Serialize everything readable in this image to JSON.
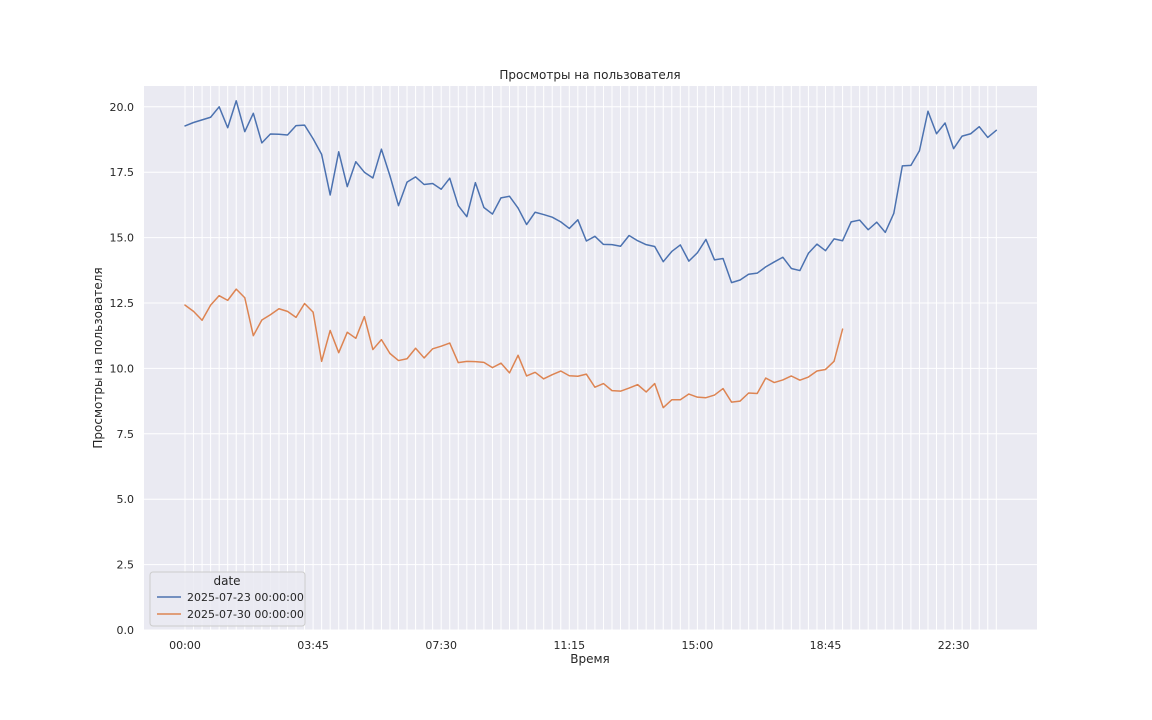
{
  "chart_data": {
    "type": "line",
    "title": "Просмотры на пользователя",
    "xlabel": "Время",
    "ylabel": "Просмотры на пользователя",
    "x_interval_minutes": 15,
    "x_start": "00:00",
    "x_tick_labels": [
      "00:00",
      "03:45",
      "07:30",
      "11:15",
      "15:00",
      "18:45",
      "22:30"
    ],
    "ylim": [
      0,
      20.8
    ],
    "y_ticks": [
      0.0,
      2.5,
      5.0,
      7.5,
      10.0,
      12.5,
      15.0,
      17.5,
      20.0
    ],
    "grid": true,
    "legend_title": "date",
    "legend_position": "lower-left",
    "series": [
      {
        "name": "2025-07-23 00:00:00",
        "color": "#4c72b0",
        "values": [
          19.27,
          19.4,
          19.5,
          19.6,
          20.0,
          19.2,
          20.23,
          19.05,
          19.75,
          18.62,
          18.96,
          18.95,
          18.92,
          19.28,
          19.3,
          18.78,
          18.18,
          16.63,
          18.28,
          16.95,
          17.9,
          17.5,
          17.28,
          18.38,
          17.36,
          16.22,
          17.12,
          17.32,
          17.03,
          17.07,
          16.85,
          17.27,
          16.22,
          15.8,
          17.1,
          16.15,
          15.9,
          16.52,
          16.58,
          16.13,
          15.5,
          15.97,
          15.88,
          15.78,
          15.6,
          15.35,
          15.68,
          14.87,
          15.05,
          14.74,
          14.73,
          14.67,
          15.08,
          14.88,
          14.73,
          14.66,
          14.08,
          14.47,
          14.72,
          14.1,
          14.42,
          14.93,
          14.15,
          14.2,
          13.28,
          13.38,
          13.6,
          13.64,
          13.88,
          14.07,
          14.25,
          13.82,
          13.74,
          14.4,
          14.75,
          14.5,
          14.95,
          14.88,
          15.6,
          15.67,
          15.3,
          15.59,
          15.2,
          15.93,
          17.74,
          17.76,
          18.32,
          19.83,
          18.97,
          19.38,
          18.4,
          18.88,
          18.97,
          19.24,
          18.83,
          19.1
        ]
      },
      {
        "name": "2025-07-30 00:00:00",
        "color": "#dd8452",
        "values": [
          12.42,
          12.18,
          11.84,
          12.42,
          12.78,
          12.6,
          13.03,
          12.7,
          11.25,
          11.85,
          12.05,
          12.28,
          12.18,
          11.95,
          12.48,
          12.15,
          10.27,
          11.45,
          10.6,
          11.38,
          11.15,
          11.98,
          10.72,
          11.1,
          10.57,
          10.3,
          10.37,
          10.77,
          10.4,
          10.75,
          10.85,
          10.97,
          10.22,
          10.27,
          10.26,
          10.23,
          10.03,
          10.2,
          9.83,
          10.5,
          9.71,
          9.85,
          9.6,
          9.76,
          9.9,
          9.72,
          9.7,
          9.78,
          9.28,
          9.42,
          9.15,
          9.13,
          9.25,
          9.38,
          9.1,
          9.42,
          8.5,
          8.8,
          8.8,
          9.02,
          8.9,
          8.88,
          8.98,
          9.23,
          8.71,
          8.75,
          9.06,
          9.04,
          9.63,
          9.46,
          9.56,
          9.71,
          9.55,
          9.67,
          9.9,
          9.96,
          10.27,
          11.5
        ]
      }
    ]
  }
}
